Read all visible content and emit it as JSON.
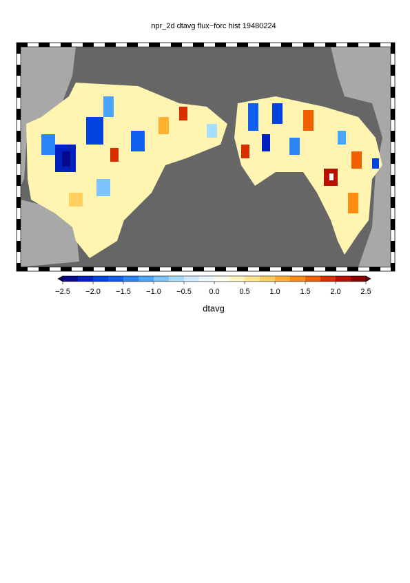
{
  "title": "npr_2d dtavg flux−forc hist 19480224",
  "colorbar": {
    "label": "dtavg",
    "lim": [
      -2.5,
      2.5
    ],
    "ticks": [
      {
        "value": -2.5,
        "label": "−2.5"
      },
      {
        "value": -2.0,
        "label": "−2.0"
      },
      {
        "value": -1.5,
        "label": "−1.5"
      },
      {
        "value": -1.0,
        "label": "−1.0"
      },
      {
        "value": -0.5,
        "label": "−0.5"
      },
      {
        "value": 0,
        "label": "0.0"
      },
      0.5,
      {
        "value": 1,
        "label": "1.0"
      },
      1.5,
      {
        "value": 2,
        "label": "2.0"
      },
      2.5
    ],
    "colors": [
      "#08088c",
      "#0020c0",
      "#0044e0",
      "#1060f0",
      "#2a84f8",
      "#4aa4ff",
      "#7cc4ff",
      "#a8dcff",
      "#d0ecff",
      "#f0f8ff",
      "#fffff0",
      "#fff8c0",
      "#ffe890",
      "#ffd060",
      "#ffb030",
      "#ff8c10",
      "#f06000",
      "#d83000",
      "#b81000",
      "#8c0000"
    ],
    "under_color": "#00005a",
    "over_color": "#600000"
  }
}
